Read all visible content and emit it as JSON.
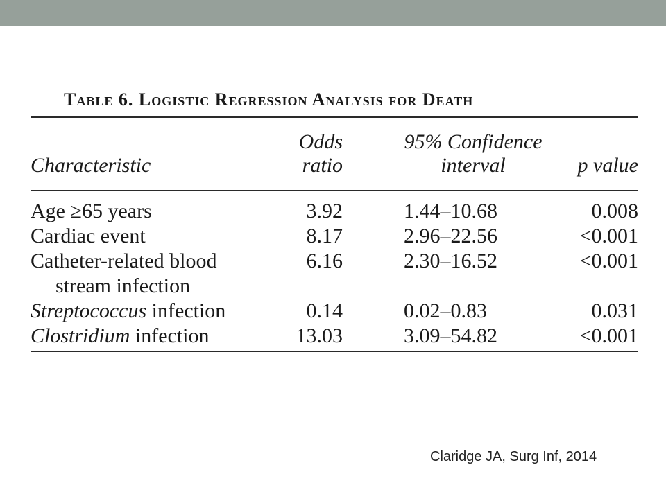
{
  "table": {
    "caption": "Table 6. Logistic Regression Analysis for Death",
    "headers": {
      "characteristic": "Characteristic",
      "odds_line1": "Odds",
      "odds_line2": "ratio",
      "ci_line1": "95% Confidence",
      "ci_line2": "interval",
      "p": "p value"
    },
    "rows": [
      {
        "italic": "",
        "rest": "Age ≥65 years",
        "cont": "",
        "odds": "3.92",
        "ci": "1.44–10.68",
        "p": "0.008"
      },
      {
        "italic": "",
        "rest": "Cardiac event",
        "cont": "",
        "odds": "8.17",
        "ci": "2.96–22.56",
        "p": "<0.001"
      },
      {
        "italic": "",
        "rest": "Catheter-related blood",
        "cont": "stream infection",
        "odds": "6.16",
        "ci": "2.30–16.52",
        "p": "<0.001"
      },
      {
        "italic": "Streptococcus",
        "rest": " infection",
        "cont": "",
        "odds": "0.14",
        "ci": "0.02–0.83",
        "p": "0.031"
      },
      {
        "italic": "Clostridium",
        "rest": " infection",
        "cont": "",
        "odds": "13.03",
        "ci": "3.09–54.82",
        "p": "<0.001"
      }
    ]
  },
  "citation": "Claridge JA, Surg Inf, 2014",
  "colors": {
    "top_bar": "#96a09a",
    "text": "#1a1a1a"
  }
}
